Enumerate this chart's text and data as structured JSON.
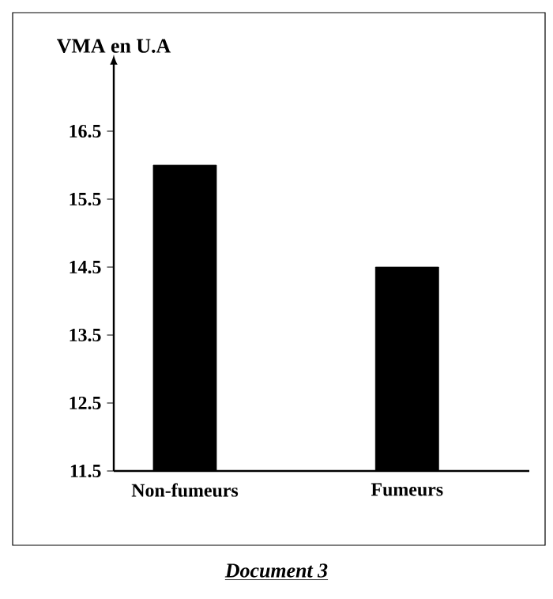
{
  "chart_data": {
    "type": "bar",
    "ylabel": "VMA en U.A",
    "categories": [
      "Non-fumeurs",
      "Fumeurs"
    ],
    "values": [
      16,
      14.5
    ],
    "color": "#000000",
    "ylim": [
      11.5,
      17.5
    ],
    "yticks": [
      11.5,
      12.5,
      13.5,
      14.5,
      15.5,
      16.5
    ],
    "annotations": [
      "Document 3"
    ]
  }
}
